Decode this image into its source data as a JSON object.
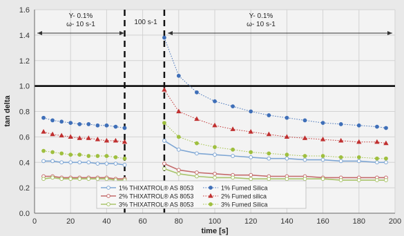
{
  "chart_data": {
    "type": "line",
    "xlabel": "time [s]",
    "ylabel": "tan delta",
    "xlim": [
      0,
      200
    ],
    "ylim": [
      0,
      1.6
    ],
    "x_ticks": [
      "0",
      "20",
      "40",
      "60",
      "80",
      "100",
      "120",
      "140",
      "160",
      "180",
      "200"
    ],
    "y_ticks": [
      "0.0",
      "0.2",
      "0.4",
      "0.6",
      "0.8",
      "1.0",
      "1.2",
      "1.4",
      "1.6"
    ],
    "grid": true,
    "reference_line_y": 1.0,
    "phase_boundaries_x": [
      50,
      72
    ],
    "annotations": {
      "left_phase": [
        "Y- 0.1%",
        "ω- 10 s-1"
      ],
      "middle_phase": "100 s-1",
      "right_phase": [
        "Y- 0.1%",
        "ω- 10 s-1"
      ]
    },
    "legend_position": "bottom-center",
    "series": [
      {
        "name": "1% THIXATROL® AS 8053",
        "color": "#7ea6d4",
        "marker": "circle",
        "marker_fill": "#ffffff",
        "segments": [
          {
            "x": [
              5,
              10,
              15,
              20,
              25,
              30,
              35,
              40,
              45,
              50
            ],
            "y": [
              0.41,
              0.41,
              0.4,
              0.4,
              0.4,
              0.4,
              0.39,
              0.39,
              0.39,
              0.38
            ]
          },
          {
            "x": [
              72,
              80,
              90,
              100,
              110,
              120,
              130,
              140,
              150,
              160,
              170,
              180,
              190,
              195
            ],
            "y": [
              0.57,
              0.5,
              0.47,
              0.46,
              0.45,
              0.44,
              0.43,
              0.43,
              0.42,
              0.42,
              0.41,
              0.41,
              0.4,
              0.4
            ]
          }
        ]
      },
      {
        "name": "2% THIXATROL® AS 8053",
        "color": "#c46a6a",
        "marker": "circle",
        "marker_fill": "#ffffff",
        "segments": [
          {
            "x": [
              5,
              10,
              15,
              20,
              25,
              30,
              35,
              40,
              45,
              50
            ],
            "y": [
              0.29,
              0.29,
              0.28,
              0.28,
              0.28,
              0.28,
              0.28,
              0.28,
              0.27,
              0.27
            ]
          },
          {
            "x": [
              72,
              80,
              90,
              100,
              110,
              120,
              130,
              140,
              150,
              160,
              170,
              180,
              190,
              195
            ],
            "y": [
              0.39,
              0.34,
              0.32,
              0.31,
              0.3,
              0.3,
              0.29,
              0.29,
              0.29,
              0.28,
              0.28,
              0.28,
              0.28,
              0.28
            ]
          }
        ]
      },
      {
        "name": "3% THIXATROL® AS 8053",
        "color": "#a8c46a",
        "marker": "circle",
        "marker_fill": "#ffffff",
        "segments": [
          {
            "x": [
              5,
              10,
              15,
              20,
              25,
              30,
              35,
              40,
              45,
              50
            ],
            "y": [
              0.27,
              0.28,
              0.27,
              0.27,
              0.27,
              0.27,
              0.27,
              0.27,
              0.26,
              0.26
            ]
          },
          {
            "x": [
              72,
              80,
              90,
              100,
              110,
              120,
              130,
              140,
              150,
              160,
              170,
              180,
              190,
              195
            ],
            "y": [
              0.35,
              0.31,
              0.29,
              0.28,
              0.28,
              0.27,
              0.27,
              0.27,
              0.27,
              0.27,
              0.26,
              0.26,
              0.26,
              0.26
            ]
          }
        ]
      },
      {
        "name": "1% Fumed Silica",
        "color": "#3f6fb8",
        "marker": "circle",
        "marker_fill": "#3f6fb8",
        "dotted": true,
        "segments": [
          {
            "x": [
              5,
              10,
              15,
              20,
              25,
              30,
              35,
              40,
              45,
              50
            ],
            "y": [
              0.75,
              0.73,
              0.72,
              0.71,
              0.7,
              0.7,
              0.69,
              0.69,
              0.68,
              0.67
            ]
          },
          {
            "x": [
              72,
              80,
              90,
              100,
              110,
              120,
              130,
              140,
              150,
              160,
              170,
              180,
              190,
              195
            ],
            "y": [
              1.38,
              1.08,
              0.95,
              0.88,
              0.84,
              0.8,
              0.77,
              0.75,
              0.73,
              0.71,
              0.7,
              0.69,
              0.68,
              0.67
            ]
          }
        ]
      },
      {
        "name": "2% Fumed silica",
        "color": "#c03030",
        "marker": "triangle",
        "marker_fill": "#c03030",
        "dotted": true,
        "segments": [
          {
            "x": [
              5,
              10,
              15,
              20,
              25,
              30,
              35,
              40,
              45,
              50
            ],
            "y": [
              0.64,
              0.62,
              0.61,
              0.6,
              0.59,
              0.59,
              0.58,
              0.57,
              0.57,
              0.56
            ]
          },
          {
            "x": [
              72,
              80,
              90,
              100,
              110,
              120,
              130,
              140,
              150,
              160,
              170,
              180,
              190,
              195
            ],
            "y": [
              0.97,
              0.8,
              0.74,
              0.69,
              0.66,
              0.64,
              0.62,
              0.6,
              0.59,
              0.58,
              0.57,
              0.56,
              0.56,
              0.55
            ]
          }
        ]
      },
      {
        "name": "3% Fumed Silica",
        "color": "#9fbf3f",
        "marker": "circle",
        "marker_fill": "#9fbf3f",
        "dotted": true,
        "segments": [
          {
            "x": [
              5,
              10,
              15,
              20,
              25,
              30,
              35,
              40,
              45,
              50
            ],
            "y": [
              0.49,
              0.48,
              0.47,
              0.46,
              0.46,
              0.45,
              0.45,
              0.45,
              0.44,
              0.43
            ]
          },
          {
            "x": [
              72,
              80,
              90,
              100,
              110,
              120,
              130,
              140,
              150,
              160,
              170,
              180,
              190,
              195
            ],
            "y": [
              0.71,
              0.6,
              0.55,
              0.52,
              0.5,
              0.48,
              0.47,
              0.46,
              0.45,
              0.45,
              0.44,
              0.44,
              0.43,
              0.43
            ]
          }
        ]
      }
    ]
  }
}
